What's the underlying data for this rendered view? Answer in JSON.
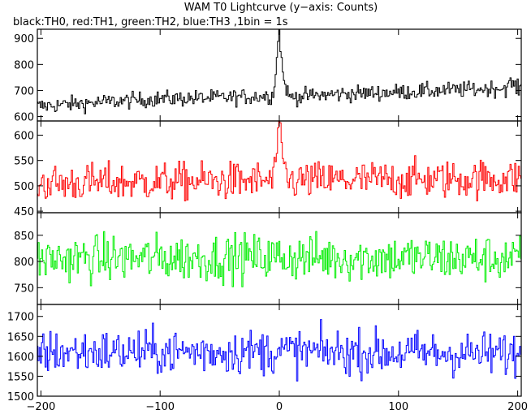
{
  "chart_data": {
    "type": "line",
    "title": "WAM T0 Lightcurve (y−axis: Counts)",
    "subtitle": "black:TH0, red:TH1, green:TH2, blue:TH3 ,1bin = 1s",
    "xlabel": "",
    "ylabel": "",
    "xlim": [
      -203,
      203
    ],
    "x_ticks": [
      -200,
      -100,
      0,
      100,
      200
    ],
    "x_tick_labels": [
      "−200",
      "−100",
      "0",
      "100",
      "200"
    ],
    "grid": false,
    "legend": "none",
    "series": [
      {
        "name": "TH0",
        "color": "#000000",
        "ylim": [
          583,
          935
        ],
        "y_ticks": [
          600,
          700,
          800,
          900
        ],
        "keypoints": [
          [
            -200,
            640
          ],
          [
            -150,
            655
          ],
          [
            -100,
            668
          ],
          [
            -50,
            672
          ],
          [
            -5,
            680
          ],
          [
            0,
            930
          ],
          [
            3,
            760
          ],
          [
            8,
            675
          ],
          [
            50,
            686
          ],
          [
            100,
            694
          ],
          [
            150,
            702
          ],
          [
            190,
            710
          ],
          [
            195,
            730
          ],
          [
            200,
            705
          ]
        ],
        "noise": 22
      },
      {
        "name": "TH1",
        "color": "#ff0000",
        "ylim": [
          447,
          628
        ],
        "y_ticks": [
          450,
          500,
          550,
          600
        ],
        "keypoints": [
          [
            -200,
            505
          ],
          [
            -100,
            508
          ],
          [
            -5,
            510
          ],
          [
            0,
            620
          ],
          [
            3,
            545
          ],
          [
            8,
            510
          ],
          [
            100,
            512
          ],
          [
            200,
            515
          ]
        ],
        "noise": 27
      },
      {
        "name": "TH2",
        "color": "#00ee00",
        "ylim": [
          718,
          893
        ],
        "y_ticks": [
          750,
          800,
          850
        ],
        "keypoints": [
          [
            -200,
            805
          ],
          [
            0,
            808
          ],
          [
            200,
            805
          ]
        ],
        "noise": 32
      },
      {
        "name": "TH3",
        "color": "#0000ff",
        "ylim": [
          1500,
          1730
        ],
        "y_ticks": [
          1500,
          1550,
          1600,
          1650,
          1700
        ],
        "keypoints": [
          [
            -200,
            1610
          ],
          [
            0,
            1612
          ],
          [
            200,
            1605
          ]
        ],
        "noise": 40
      }
    ]
  }
}
